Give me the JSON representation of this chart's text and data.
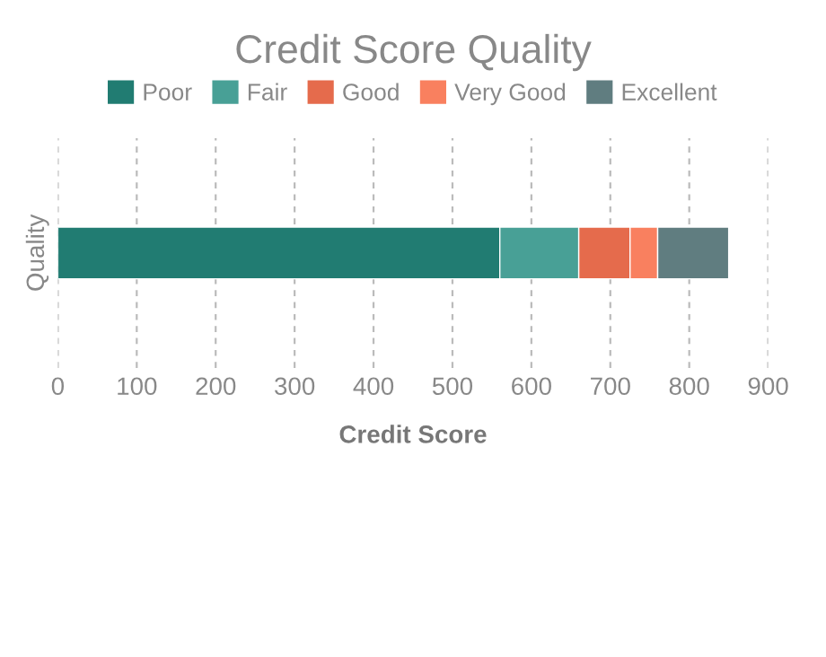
{
  "chart_data": {
    "type": "bar",
    "orientation": "horizontal",
    "stacked": true,
    "title": "Credit Score Quality",
    "xlabel": "Credit Score",
    "categories": [
      "Quality"
    ],
    "series": [
      {
        "name": "Poor",
        "color": "#217c72",
        "values": [
          560
        ]
      },
      {
        "name": "Fair",
        "color": "#48a096",
        "values": [
          100
        ]
      },
      {
        "name": "Good",
        "color": "#e56b4c",
        "values": [
          65
        ]
      },
      {
        "name": "Very Good",
        "color": "#f9805f",
        "values": [
          35
        ]
      },
      {
        "name": "Excellent",
        "color": "#607d80",
        "values": [
          90
        ]
      }
    ],
    "xlim": [
      0,
      900
    ],
    "xticks": [
      0,
      100,
      200,
      300,
      400,
      500,
      600,
      700,
      800,
      900
    ],
    "grid": "x",
    "legend": "top"
  }
}
